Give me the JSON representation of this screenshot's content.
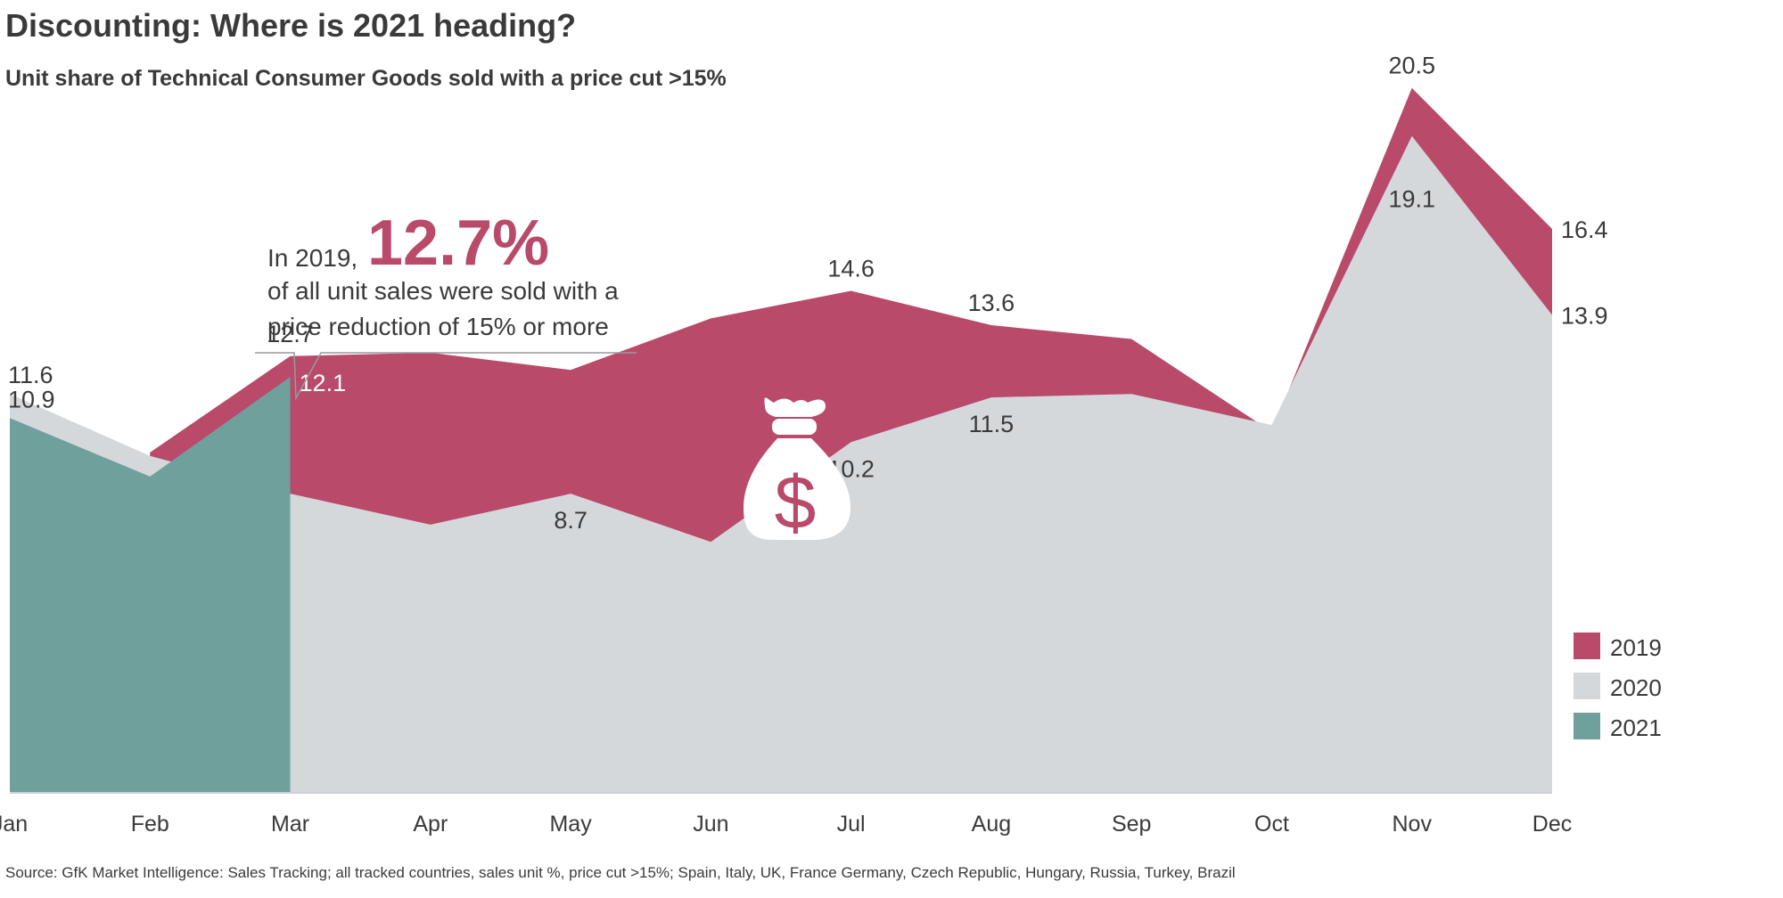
{
  "title": "Discounting: Where is 2021 heading?",
  "subtitle": "Unit share of Technical Consumer Goods sold with a price cut >15%",
  "source": "Source: GfK Market Intelligence: Sales Tracking; all tracked countries, sales unit %, price cut >15%; Spain, Italy, UK, France Germany, Czech Republic, Hungary, Russia, Turkey, Brazil",
  "callout": {
    "prefix": "In 2019,",
    "highlight": "12.7%",
    "line2": "of all unit sales were sold with a",
    "line3": "price reduction of 15% or more",
    "icon": "money-bag-icon"
  },
  "colors": {
    "2019": "#b94a6a",
    "2020": "#d5d8db",
    "2021": "#6fa09c"
  },
  "chart_data": {
    "type": "area",
    "categories": [
      "Jan",
      "Feb",
      "Mar",
      "Apr",
      "May",
      "Jun",
      "Jul",
      "Aug",
      "Sep",
      "Oct",
      "Nov",
      "Dec"
    ],
    "series": [
      {
        "name": "2019",
        "values": [
          null,
          9.9,
          12.7,
          12.8,
          12.3,
          13.8,
          14.6,
          13.6,
          13.2,
          10.5,
          20.5,
          16.4
        ]
      },
      {
        "name": "2020",
        "values": [
          11.6,
          9.8,
          8.7,
          7.8,
          8.7,
          7.3,
          10.2,
          11.5,
          11.6,
          10.7,
          19.1,
          13.9
        ]
      },
      {
        "name": "2021",
        "values": [
          10.9,
          9.2,
          12.1,
          null,
          null,
          null,
          null,
          null,
          null,
          null,
          null,
          null
        ]
      }
    ],
    "data_labels": [
      {
        "series": "2020",
        "category": "Jan",
        "text": "11.6"
      },
      {
        "series": "2021",
        "category": "Jan",
        "text": "10.9"
      },
      {
        "series": "2019",
        "category": "Mar",
        "text": "12.7"
      },
      {
        "series": "2021",
        "category": "Mar",
        "text": "12.1"
      },
      {
        "series": "2020",
        "category": "May",
        "text": "8.7"
      },
      {
        "series": "2019",
        "category": "Jul",
        "text": "14.6"
      },
      {
        "series": "2020",
        "category": "Jul",
        "text": "10.2"
      },
      {
        "series": "2019",
        "category": "Aug",
        "text": "13.6"
      },
      {
        "series": "2020",
        "category": "Aug",
        "text": "11.5"
      },
      {
        "series": "2019",
        "category": "Nov",
        "text": "20.5"
      },
      {
        "series": "2020",
        "category": "Nov",
        "text": "19.1"
      },
      {
        "series": "2019",
        "category": "Dec",
        "text": "16.4"
      },
      {
        "series": "2020",
        "category": "Dec",
        "text": "13.9"
      }
    ],
    "legend": [
      "2019",
      "2020",
      "2021"
    ],
    "legend_position": "bottom-right",
    "ylim": [
      0,
      22
    ],
    "grid": false
  }
}
